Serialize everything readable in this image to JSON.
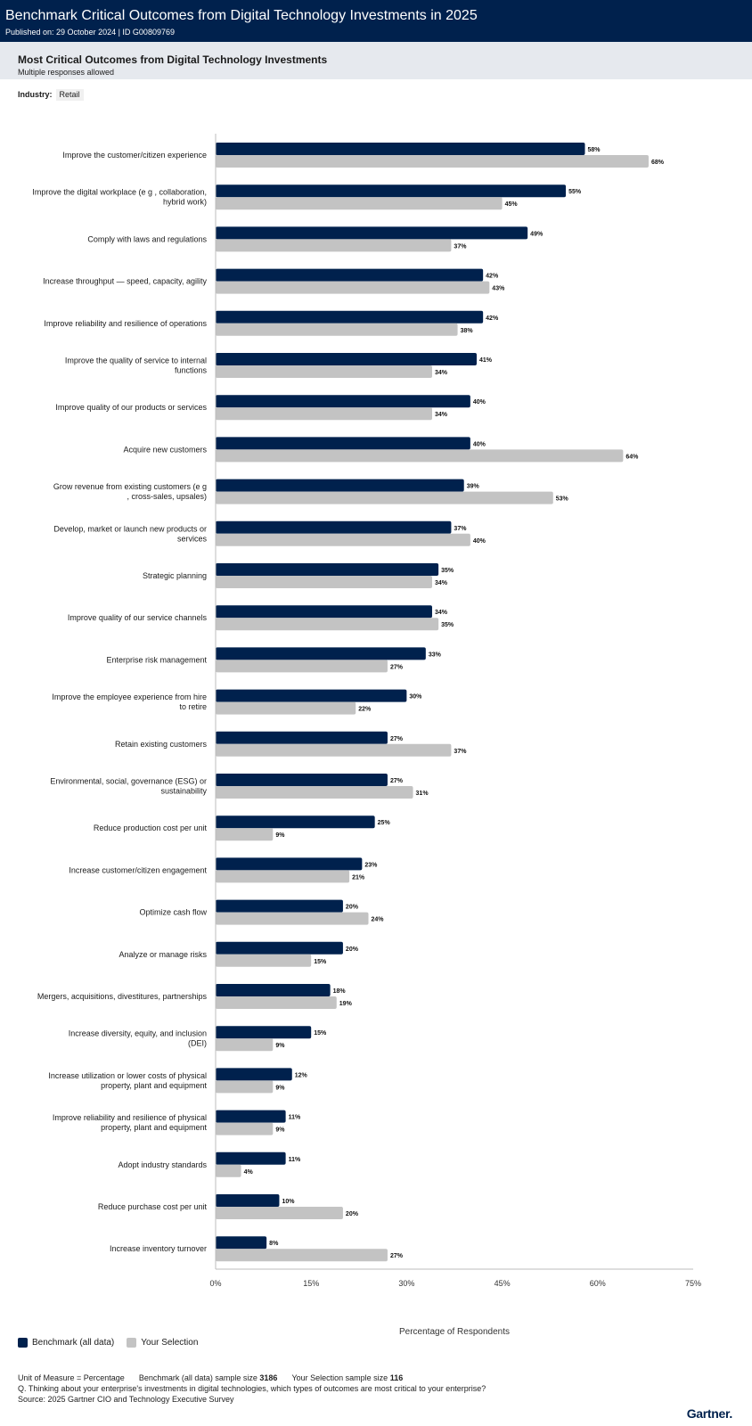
{
  "header": {
    "title": "Benchmark Critical Outcomes from Digital Technology Investments in 2025",
    "meta": "Published on: 29 October 2024 | ID G00809769"
  },
  "subheader": {
    "title": "Most Critical Outcomes from Digital Technology Investments",
    "subtitle": "Multiple responses allowed"
  },
  "filter": {
    "label": "Industry:",
    "value": "Retail"
  },
  "colors": {
    "benchmark": "#00214d",
    "selection": "#c3c3c3",
    "header_bg": "#00214d"
  },
  "chart_data": {
    "type": "bar",
    "orientation": "horizontal",
    "xlabel": "Percentage of Respondents",
    "ylabel": "",
    "xlim": [
      0,
      75
    ],
    "xticks": [
      "0%",
      "15%",
      "30%",
      "45%",
      "60%",
      "75%"
    ],
    "grid": false,
    "legend_position": "bottom-left",
    "categories": [
      "Improve the customer/citizen experience",
      "Improve the digital workplace (e g , collaboration, hybrid work)",
      "Comply with laws and regulations",
      "Increase throughput — speed, capacity, agility",
      "Improve reliability and resilience of operations",
      "Improve the quality of service to internal functions",
      "Improve quality of our products or services",
      "Acquire new customers",
      "Grow revenue from existing customers (e g , cross-sales, upsales)",
      "Develop, market or launch new products or services",
      "Strategic planning",
      "Improve quality of our service channels",
      "Enterprise risk management",
      "Improve the employee experience from hire to retire",
      "Retain existing customers",
      "Environmental, social, governance (ESG) or sustainability",
      "Reduce production cost per unit",
      "Increase customer/citizen engagement",
      "Optimize cash flow",
      "Analyze or manage risks",
      "Mergers, acquisitions, divestitures, partnerships",
      "Increase diversity, equity, and inclusion (DEI)",
      "Increase utilization or lower costs of physical property, plant and equipment",
      "Improve reliability and resilience of physical property, plant and equipment",
      "Adopt industry standards",
      "Reduce purchase cost per unit",
      "Increase inventory turnover"
    ],
    "category_lines": [
      [
        "Improve the customer/citizen experience"
      ],
      [
        "Improve the digital workplace (e g , collaboration,",
        "hybrid work)"
      ],
      [
        "Comply with laws and regulations"
      ],
      [
        "Increase throughput — speed, capacity, agility"
      ],
      [
        "Improve reliability and resilience of operations"
      ],
      [
        "Improve the quality of service to internal",
        "functions"
      ],
      [
        "Improve quality of our products or services"
      ],
      [
        "Acquire new customers"
      ],
      [
        "Grow revenue from existing customers (e g",
        ", cross-sales, upsales)"
      ],
      [
        "Develop, market or launch new products or",
        "services"
      ],
      [
        "Strategic planning"
      ],
      [
        "Improve quality of our service channels"
      ],
      [
        "Enterprise risk management"
      ],
      [
        "Improve the employee experience from hire",
        "to retire"
      ],
      [
        "Retain existing customers"
      ],
      [
        "Environmental, social, governance (ESG) or",
        "sustainability"
      ],
      [
        "Reduce production cost per unit"
      ],
      [
        "Increase customer/citizen engagement"
      ],
      [
        "Optimize cash flow"
      ],
      [
        "Analyze or manage risks"
      ],
      [
        "Mergers, acquisitions, divestitures, partnerships"
      ],
      [
        "Increase diversity, equity, and inclusion",
        "(DEI)"
      ],
      [
        "Increase utilization or lower costs of physical",
        "property, plant and equipment"
      ],
      [
        "Improve reliability and resilience of physical",
        "property, plant and equipment"
      ],
      [
        "Adopt industry standards"
      ],
      [
        "Reduce purchase cost per unit"
      ],
      [
        "Increase inventory turnover"
      ]
    ],
    "series": [
      {
        "name": "Benchmark (all data)",
        "color": "#00214d",
        "values": [
          58,
          55,
          49,
          42,
          42,
          41,
          40,
          40,
          39,
          37,
          35,
          34,
          33,
          30,
          27,
          27,
          25,
          23,
          20,
          20,
          18,
          15,
          12,
          11,
          11,
          10,
          8
        ]
      },
      {
        "name": "Your Selection",
        "color": "#c3c3c3",
        "values": [
          68,
          45,
          37,
          43,
          38,
          34,
          34,
          64,
          53,
          40,
          34,
          35,
          27,
          22,
          37,
          31,
          9,
          21,
          24,
          15,
          19,
          9,
          9,
          9,
          4,
          20,
          27
        ]
      }
    ]
  },
  "footer": {
    "unit": "Unit of Measure = Percentage",
    "benchmark_label": "Benchmark (all data) sample size",
    "benchmark_n": "3186",
    "selection_label": "Your Selection sample size",
    "selection_n": "116",
    "question": "Q. Thinking about your enterprise's investments in digital technologies, which types of outcomes are most critical to your enterprise?",
    "source": "Source: 2025 Gartner CIO and Technology Executive Survey"
  },
  "logo": {
    "text": "Gartner"
  }
}
